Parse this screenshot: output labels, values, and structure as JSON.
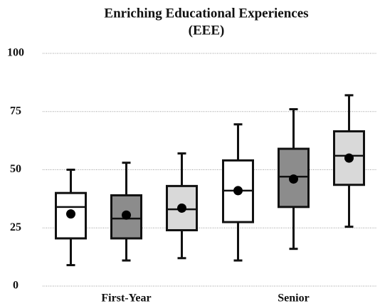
{
  "chart_data": {
    "type": "box",
    "title": [
      "Enriching Educational Experiences",
      "(EEE)"
    ],
    "categories": [
      "First-Year",
      "Senior"
    ],
    "ylim": [
      0,
      100
    ],
    "yticks": [
      0,
      25,
      50,
      75,
      100
    ],
    "grid": true,
    "series": [
      {
        "color": "#ffffff",
        "values": [
          {
            "low": 9,
            "q1": 20.5,
            "median": 34,
            "q3": 40,
            "high": 50,
            "mean": 31
          },
          {
            "low": 11,
            "q1": 27.5,
            "median": 41,
            "q3": 54,
            "high": 69.5,
            "mean": 41
          }
        ]
      },
      {
        "color": "#8c8c8c",
        "values": [
          {
            "low": 11,
            "q1": 20.5,
            "median": 29,
            "q3": 39,
            "high": 53,
            "mean": 30.5
          },
          {
            "low": 16,
            "q1": 34,
            "median": 47,
            "q3": 59,
            "high": 76,
            "mean": 46
          }
        ]
      },
      {
        "color": "#d9d9d9",
        "values": [
          {
            "low": 12,
            "q1": 24,
            "median": 33,
            "q3": 43,
            "high": 57,
            "mean": 33.5
          },
          {
            "low": 25.5,
            "q1": 43.5,
            "median": 56,
            "q3": 66.5,
            "high": 82,
            "mean": 55
          }
        ]
      }
    ]
  }
}
